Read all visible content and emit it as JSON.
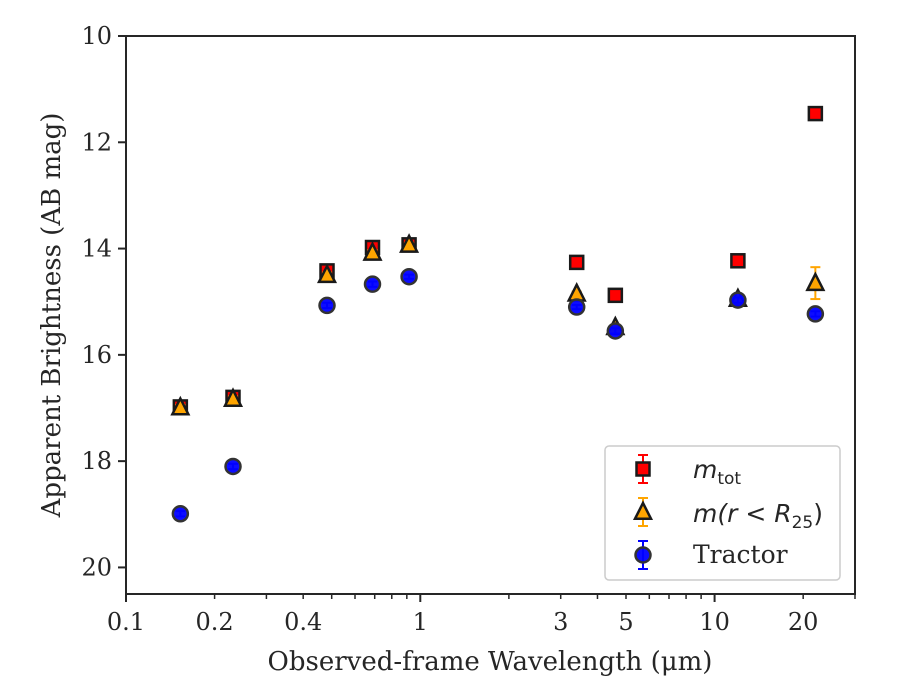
{
  "chart_data": {
    "type": "scatter",
    "xlabel": "Observed-frame Wavelength (μm)",
    "ylabel": "Apparent Brightness (AB mag)",
    "x_scale": "log",
    "xlim": [
      0.1,
      30
    ],
    "ylim": [
      20.5,
      10
    ],
    "y_inverted": true,
    "x_ticks": [
      {
        "value": 0.1,
        "label": "0.1"
      },
      {
        "value": 0.2,
        "label": "0.2"
      },
      {
        "value": 0.4,
        "label": "0.4"
      },
      {
        "value": 1,
        "label": "1"
      },
      {
        "value": 3,
        "label": "3"
      },
      {
        "value": 5,
        "label": "5"
      },
      {
        "value": 10,
        "label": "10"
      },
      {
        "value": 20,
        "label": "20"
      }
    ],
    "y_ticks": [
      {
        "value": 10,
        "label": "10"
      },
      {
        "value": 12,
        "label": "12"
      },
      {
        "value": 14,
        "label": "14"
      },
      {
        "value": 16,
        "label": "16"
      },
      {
        "value": 18,
        "label": "18"
      },
      {
        "value": 20,
        "label": "20"
      }
    ],
    "grid": false,
    "legend_position": "lower-right",
    "series": [
      {
        "name": "m_tot",
        "marker": "square",
        "color": "#ff0000",
        "edge_color": "#1a1a1a",
        "error_color": "#ff0000",
        "points": [
          {
            "x": 0.153,
            "y": 16.98,
            "err": 0.05
          },
          {
            "x": 0.231,
            "y": 16.8,
            "err": 0.05
          },
          {
            "x": 0.482,
            "y": 14.42,
            "err": 0.05
          },
          {
            "x": 0.688,
            "y": 13.98,
            "err": 0.05
          },
          {
            "x": 0.916,
            "y": 13.93,
            "err": 0.04
          },
          {
            "x": 3.4,
            "y": 14.26,
            "err": 0.03
          },
          {
            "x": 4.6,
            "y": 14.88,
            "err": 0.03
          },
          {
            "x": 12.0,
            "y": 14.23,
            "err": 0.03
          },
          {
            "x": 22.0,
            "y": 11.46,
            "err": 0.04
          }
        ]
      },
      {
        "name": "m(r < R25)",
        "marker": "triangle",
        "color": "#ffa500",
        "edge_color": "#1a1a1a",
        "error_color": "#ffa500",
        "points": [
          {
            "x": 0.153,
            "y": 16.99,
            "err": 0.05
          },
          {
            "x": 0.231,
            "y": 16.83,
            "err": 0.05
          },
          {
            "x": 0.482,
            "y": 14.5,
            "err": 0.05
          },
          {
            "x": 0.688,
            "y": 14.08,
            "err": 0.05
          },
          {
            "x": 0.916,
            "y": 13.93,
            "err": 0.04
          },
          {
            "x": 3.4,
            "y": 14.85,
            "err": 0.04
          },
          {
            "x": 4.6,
            "y": 15.48,
            "err": 0.05
          },
          {
            "x": 12.0,
            "y": 14.95,
            "err": 0.07
          },
          {
            "x": 22.0,
            "y": 14.65,
            "err": 0.3
          }
        ]
      },
      {
        "name": "Tractor",
        "marker": "circle",
        "color": "#0000ff",
        "edge_color": "#333333",
        "error_color": "#0000ff",
        "points": [
          {
            "x": 0.153,
            "y": 18.99,
            "err": 0.05
          },
          {
            "x": 0.231,
            "y": 18.1,
            "err": 0.05
          },
          {
            "x": 0.482,
            "y": 15.07,
            "err": 0.05
          },
          {
            "x": 0.688,
            "y": 14.67,
            "err": 0.05
          },
          {
            "x": 0.916,
            "y": 14.53,
            "err": 0.04
          },
          {
            "x": 3.4,
            "y": 15.1,
            "err": 0.04
          },
          {
            "x": 4.6,
            "y": 15.55,
            "err": 0.05
          },
          {
            "x": 12.0,
            "y": 14.97,
            "err": 0.05
          },
          {
            "x": 22.0,
            "y": 15.23,
            "err": 0.05
          }
        ]
      }
    ]
  },
  "legend": {
    "items": [
      {
        "key": "m_tot",
        "main": "m",
        "sub": "tot"
      },
      {
        "key": "m_r25",
        "main": "m(r < R",
        "sub": "25",
        "tail": ")"
      },
      {
        "key": "tractor",
        "main": "Tractor"
      }
    ]
  }
}
